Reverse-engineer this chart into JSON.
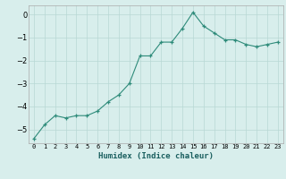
{
  "x": [
    0,
    1,
    2,
    3,
    4,
    5,
    6,
    7,
    8,
    9,
    10,
    11,
    12,
    13,
    14,
    15,
    16,
    17,
    18,
    19,
    20,
    21,
    22,
    23
  ],
  "y": [
    -5.4,
    -4.8,
    -4.4,
    -4.5,
    -4.4,
    -4.4,
    -4.2,
    -3.8,
    -3.5,
    -3.0,
    -1.8,
    -1.8,
    -1.2,
    -1.2,
    -0.6,
    0.1,
    -0.5,
    -0.8,
    -1.1,
    -1.1,
    -1.3,
    -1.4,
    -1.3,
    -1.2
  ],
  "xlabel": "Humidex (Indice chaleur)",
  "xlim": [
    -0.5,
    23.5
  ],
  "ylim": [
    -5.6,
    0.4
  ],
  "yticks": [
    0,
    -1,
    -2,
    -3,
    -4,
    -5
  ],
  "xtick_labels": [
    "0",
    "1",
    "2",
    "3",
    "4",
    "5",
    "6",
    "7",
    "8",
    "9",
    "10",
    "11",
    "12",
    "13",
    "14",
    "15",
    "16",
    "17",
    "18",
    "19",
    "20",
    "21",
    "22",
    "23"
  ],
  "line_color": "#2e8b7a",
  "bg_color": "#d8eeec",
  "grid_color": "#b8d8d4",
  "fig_bg": "#d8eeec",
  "xlabel_color": "#1a5f5f"
}
